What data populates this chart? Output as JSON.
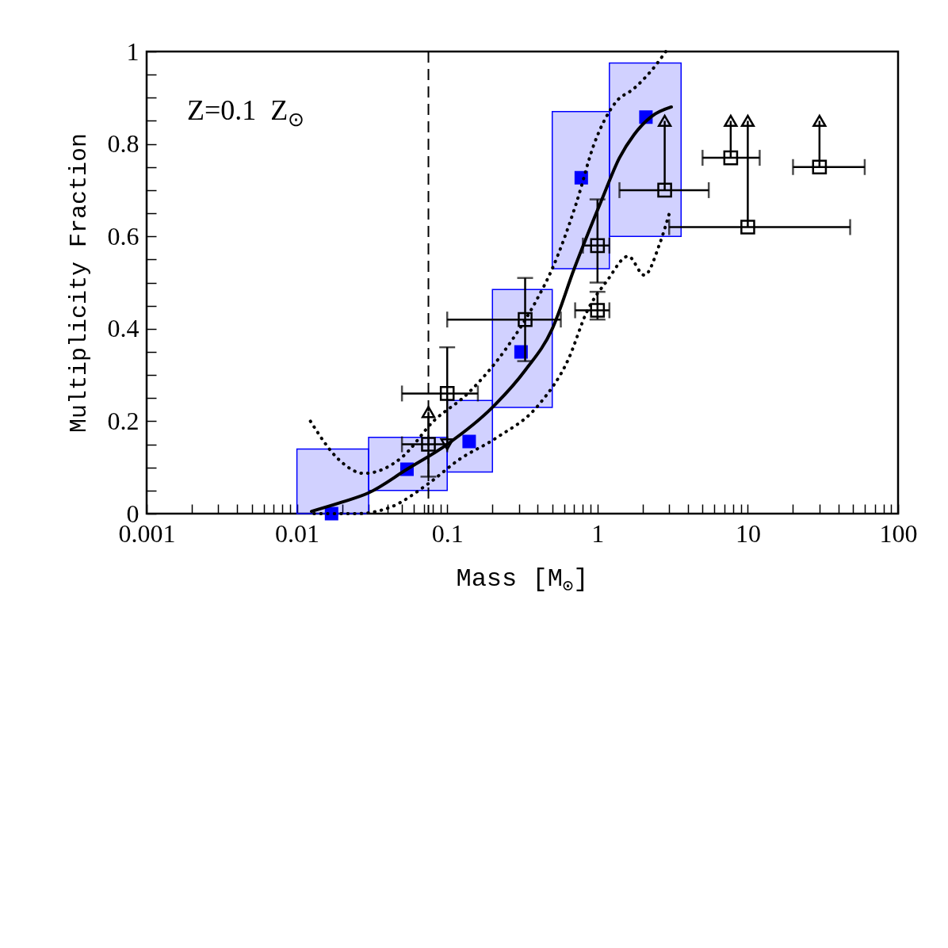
{
  "chart_data": {
    "type": "scatter",
    "xlabel": "Mass [M$_{⊙}$]",
    "ylabel": "Multiplicity Fraction",
    "annotations": [
      "Z=0.1  Z$_{⊙}$"
    ],
    "log": "x",
    "xlim": [
      0.001,
      100
    ],
    "ylim": [
      0,
      1
    ],
    "xticks": [
      0.001,
      {
        "value": 0.002,
        "label": null
      },
      {
        "value": 0.003,
        "label": null
      },
      {
        "value": 0.004,
        "label": null
      },
      {
        "value": 0.005,
        "label": null
      },
      {
        "value": 0.006,
        "label": null
      },
      {
        "value": 0.007,
        "label": null
      },
      {
        "value": 0.008,
        "label": null
      },
      {
        "value": 0.009,
        "label": null
      },
      0.01,
      {
        "value": 0.02,
        "label": null
      },
      {
        "value": 0.03,
        "label": null
      },
      {
        "value": 0.04,
        "label": null
      },
      {
        "value": 0.05,
        "label": null
      },
      {
        "value": 0.06,
        "label": null
      },
      {
        "value": 0.07,
        "label": null
      },
      {
        "value": 0.08,
        "label": null
      },
      {
        "value": 0.09,
        "label": null
      },
      0.1,
      {
        "value": 0.2,
        "label": null
      },
      {
        "value": 0.3,
        "label": null
      },
      {
        "value": 0.4,
        "label": null
      },
      {
        "value": 0.5,
        "label": null
      },
      {
        "value": 0.6,
        "label": null
      },
      {
        "value": 0.7,
        "label": null
      },
      {
        "value": 0.8,
        "label": null
      },
      {
        "value": 0.9,
        "label": null
      },
      1,
      {
        "value": 2,
        "label": null
      },
      {
        "value": 3,
        "label": null
      },
      {
        "value": 4,
        "label": null
      },
      {
        "value": 5,
        "label": null
      },
      {
        "value": 6,
        "label": null
      },
      {
        "value": 7,
        "label": null
      },
      {
        "value": 8,
        "label": null
      },
      {
        "value": 9,
        "label": null
      },
      10,
      {
        "value": 20,
        "label": null
      },
      {
        "value": 30,
        "label": null
      },
      {
        "value": 40,
        "label": null
      },
      {
        "value": 50,
        "label": null
      },
      {
        "value": 60,
        "label": null
      },
      {
        "value": 70,
        "label": null
      },
      {
        "value": 80,
        "label": null
      },
      {
        "value": 90,
        "label": null
      },
      100
    ],
    "yticks": [
      0,
      {
        "value": 0.05,
        "label": null
      },
      {
        "value": 0.1,
        "label": null
      },
      {
        "value": 0.15,
        "label": null
      },
      0.2,
      {
        "value": 0.25,
        "label": null
      },
      {
        "value": 0.3,
        "label": null
      },
      {
        "value": 0.35,
        "label": null
      },
      0.4,
      {
        "value": 0.45,
        "label": null
      },
      {
        "value": 0.5,
        "label": null
      },
      {
        "value": 0.55,
        "label": null
      },
      0.6,
      {
        "value": 0.65,
        "label": null
      },
      {
        "value": 0.7,
        "label": null
      },
      {
        "value": 0.75,
        "label": null
      },
      0.8,
      {
        "value": 0.85,
        "label": null
      },
      {
        "value": 0.9,
        "label": null
      },
      {
        "value": 0.95,
        "label": null
      },
      1
    ],
    "ref_lines": [
      {
        "axis": "x",
        "value": 0.075,
        "color": "#000000",
        "line_style": "dashed"
      }
    ],
    "series": [
      {
        "type": "histogram",
        "color": "#0000ff",
        "bins": [
          0.01,
          0.03,
          0.1,
          0.2,
          0.5,
          1.2,
          3.6
        ],
        "base": [
          0,
          0.05,
          0.09,
          0.23,
          0.53,
          0.6
        ],
        "values": [
          0.14,
          0.115,
          0.155,
          0.255,
          0.34,
          0.375
        ]
      },
      {
        "color": "#0000ff",
        "marker": "square",
        "x": [
          0.017,
          0.054,
          0.14,
          0.31,
          0.78,
          2.1
        ],
        "values": [
          0,
          0.096,
          0.156,
          0.35,
          0.727,
          0.858
        ]
      },
      {
        "type": "line",
        "color": "#000000",
        "line_style": "solid",
        "x": [
          0.0125,
          0.02,
          0.03,
          0.054,
          0.1,
          0.2,
          0.33,
          0.5,
          0.7,
          1.07,
          1.4,
          1.75,
          2.3,
          3.1
        ],
        "values": [
          0.005,
          0.025,
          0.045,
          0.096,
          0.15,
          0.23,
          0.31,
          0.4,
          0.53,
          0.68,
          0.77,
          0.82,
          0.86,
          0.88
        ]
      },
      {
        "type": "line",
        "color": "#000000",
        "line_style": "dotted",
        "x": [
          0.0123,
          0.019,
          0.028,
          0.05,
          0.081,
          0.137,
          0.25,
          0.39,
          0.5,
          0.72,
          0.95,
          1.32,
          1.75,
          2.3,
          2.85
        ],
        "values": [
          0.2,
          0.117,
          0.087,
          0.122,
          0.2,
          0.26,
          0.36,
          0.46,
          0.53,
          0.67,
          0.8,
          0.89,
          0.92,
          0.96,
          1
        ]
      },
      {
        "type": "line",
        "color": "#000000",
        "line_style": "dotted",
        "x": [
          0.013,
          0.025,
          0.042,
          0.075,
          0.12,
          0.21,
          0.41,
          0.64,
          0.85,
          1.17,
          1.6,
          2.05,
          2.6,
          3.07
        ],
        "values": [
          0,
          0,
          0.014,
          0.065,
          0.117,
          0.163,
          0.237,
          0.334,
          0.437,
          0.506,
          0.557,
          0.516,
          0.585,
          0.66
        ]
      },
      {
        "color": "#000000",
        "marker": "square",
        "x": [
          0.075,
          0.1,
          0.33,
          1.0,
          1.0,
          2.8,
          7.7,
          10,
          30
        ],
        "values": [
          0.15,
          0.26,
          0.42,
          0.58,
          0.44,
          0.7,
          0.77,
          0.62,
          0.75
        ],
        "xerrors": [
          [
            0.05,
            0.1
          ],
          [
            0.05,
            0.16
          ],
          [
            0.1,
            0.57
          ],
          [
            0.8,
            1.2
          ],
          [
            0.71,
            1.2
          ],
          [
            1.4,
            5.5
          ],
          [
            5,
            12
          ],
          [
            3,
            48
          ],
          [
            20,
            60
          ]
        ],
        "errors": [
          [
            0.08,
            0.15
          ],
          [
            0.26,
            0.36
          ],
          [
            0.33,
            0.51
          ],
          [
            0.5,
            0.68
          ],
          [
            0.42,
            0.48
          ],
          null,
          null,
          null,
          null
        ]
      },
      {
        "color": "#000000",
        "marker": "triangle",
        "x": [
          0.075,
          0.1,
          2.8,
          7.7,
          10,
          30
        ],
        "values": [
          0.22,
          0.15,
          0.85,
          0.85,
          0.85,
          0.85
        ],
        "errors": [
          [
            0.15,
            0.22
          ],
          [
            0.15,
            0.26
          ],
          [
            0.7,
            0.85
          ],
          [
            0.77,
            0.85
          ],
          [
            0.62,
            0.85
          ],
          [
            0.75,
            0.85
          ]
        ]
      }
    ]
  }
}
